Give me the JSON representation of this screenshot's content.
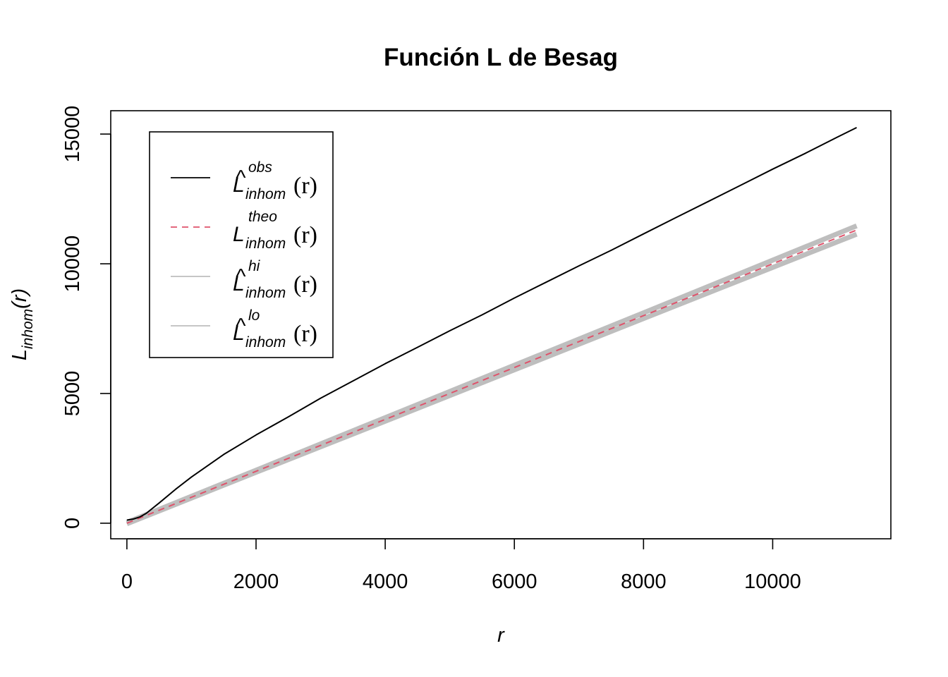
{
  "chart_data": {
    "type": "line",
    "title": "Función L de Besag",
    "xlabel": "r",
    "ylabel": {
      "main": "L",
      "sub": "inhom",
      "arg": "(r)"
    },
    "xlim": [
      -250,
      11830
    ],
    "ylim": [
      -600,
      15900
    ],
    "x_ticks": [
      0,
      2000,
      4000,
      6000,
      8000,
      10000
    ],
    "y_ticks": [
      0,
      5000,
      10000,
      15000
    ],
    "x_tick_labels": [
      "0",
      "2000",
      "4000",
      "6000",
      "8000",
      "10000"
    ],
    "y_tick_labels": [
      "0",
      "5000",
      "10000",
      "15000"
    ],
    "legend_position": "top-left",
    "series": [
      {
        "name": "obs",
        "legend": {
          "main": "L",
          "hat": "^",
          "sup": "obs",
          "sub": "inhom",
          "arg": "(r)"
        },
        "color": "#000000",
        "dash": "solid",
        "x": [
          0,
          100,
          200,
          300,
          500,
          750,
          1000,
          1500,
          2000,
          2500,
          3000,
          3500,
          4000,
          4500,
          5000,
          5500,
          6000,
          6500,
          7000,
          7500,
          8000,
          8500,
          9000,
          9500,
          10000,
          10500,
          11000,
          11300
        ],
        "y": [
          120,
          160,
          240,
          380,
          780,
          1300,
          1780,
          2650,
          3400,
          4100,
          4820,
          5480,
          6150,
          6780,
          7420,
          8030,
          8680,
          9300,
          9920,
          10520,
          11150,
          11780,
          12400,
          13020,
          13650,
          14250,
          14880,
          15250
        ]
      },
      {
        "name": "theo",
        "legend": {
          "main": "L",
          "hat": "",
          "sup": "theo",
          "sub": "inhom",
          "arg": "(r)"
        },
        "color": "#DF536B",
        "dash": "dashed",
        "x": [
          0,
          11300
        ],
        "y": [
          0,
          11300
        ]
      },
      {
        "name": "hi",
        "legend": {
          "main": "L",
          "hat": "^",
          "sup": "hi",
          "sub": "inhom",
          "arg": "(r)"
        },
        "color": "#BEBEBE",
        "dash": "solid",
        "x": [
          0,
          2000,
          4000,
          6000,
          8000,
          10000,
          11300
        ],
        "y": [
          30,
          2045,
          4070,
          6090,
          8110,
          10140,
          11460
        ]
      },
      {
        "name": "lo",
        "legend": {
          "main": "L",
          "hat": "^",
          "sup": "lo",
          "sub": "inhom",
          "arg": "(r)"
        },
        "color": "#BEBEBE",
        "dash": "solid",
        "x": [
          0,
          2000,
          4000,
          6000,
          8000,
          10000,
          11300
        ],
        "y": [
          -20,
          1960,
          3930,
          5910,
          7890,
          9860,
          11140
        ]
      }
    ]
  }
}
